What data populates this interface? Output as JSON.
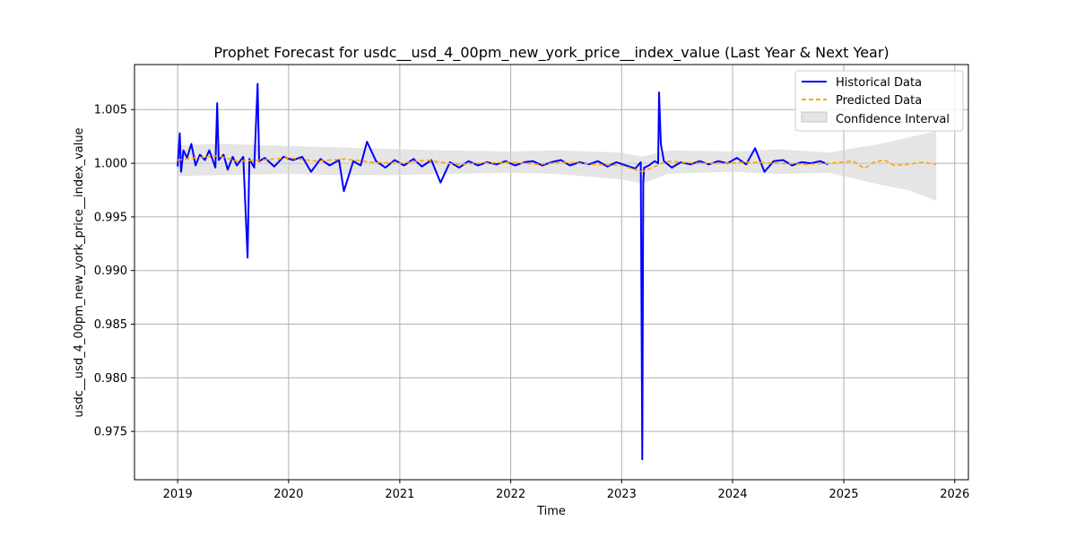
{
  "chart_data": {
    "type": "line",
    "title": "Prophet Forecast for usdc__usd_4_00pm_new_york_price__index_value (Last Year & Next Year)",
    "xlabel": "Time",
    "ylabel": "usdc__usd_4_00pm_new_york_price__index_value",
    "x_ticks": [
      "2019",
      "2020",
      "2021",
      "2022",
      "2023",
      "2024",
      "2025",
      "2026"
    ],
    "y_ticks": [
      "0.975",
      "0.980",
      "0.985",
      "0.990",
      "0.995",
      "1.000",
      "1.005"
    ],
    "x_range": [
      "2018-08-12",
      "2026-02-15"
    ],
    "ylim": [
      0.9705,
      1.0092
    ],
    "grid": true,
    "legend_position": "upper right",
    "colors": {
      "historical": "#0000ff",
      "predicted": "#ffa500",
      "confidence": "#d3d3d3"
    },
    "series": [
      {
        "name": "Historical Data",
        "style": "solid",
        "x": [
          "2019-01-01",
          "2019-01-08",
          "2019-01-12",
          "2019-01-20",
          "2019-02-01",
          "2019-02-15",
          "2019-03-01",
          "2019-03-15",
          "2019-04-01",
          "2019-04-15",
          "2019-05-05",
          "2019-05-11",
          "2019-05-16",
          "2019-06-01",
          "2019-06-15",
          "2019-07-01",
          "2019-07-15",
          "2019-08-05",
          "2019-08-19",
          "2019-08-25",
          "2019-09-10",
          "2019-09-21",
          "2019-09-26",
          "2019-10-15",
          "2019-11-15",
          "2019-12-15",
          "2020-01-15",
          "2020-02-15",
          "2020-03-15",
          "2020-04-15",
          "2020-05-15",
          "2020-06-15",
          "2020-07-01",
          "2020-08-01",
          "2020-08-25",
          "2020-09-15",
          "2020-10-15",
          "2020-11-15",
          "2020-12-15",
          "2021-01-15",
          "2021-02-15",
          "2021-03-15",
          "2021-04-15",
          "2021-05-15",
          "2021-06-15",
          "2021-07-15",
          "2021-08-15",
          "2021-09-15",
          "2021-10-15",
          "2021-11-15",
          "2021-12-15",
          "2022-01-15",
          "2022-02-15",
          "2022-03-15",
          "2022-04-15",
          "2022-05-15",
          "2022-06-15",
          "2022-07-15",
          "2022-08-15",
          "2022-09-15",
          "2022-10-15",
          "2022-11-15",
          "2022-12-15",
          "2023-01-15",
          "2023-02-15",
          "2023-03-05",
          "2023-03-10",
          "2023-03-13",
          "2023-03-16",
          "2023-04-01",
          "2023-04-20",
          "2023-05-01",
          "2023-05-04",
          "2023-05-10",
          "2023-05-20",
          "2023-06-15",
          "2023-07-15",
          "2023-08-15",
          "2023-09-15",
          "2023-10-15",
          "2023-11-15",
          "2023-12-15",
          "2024-01-15",
          "2024-02-15",
          "2024-03-15",
          "2024-04-15",
          "2024-05-15",
          "2024-06-15",
          "2024-07-15",
          "2024-08-15",
          "2024-09-15",
          "2024-10-15",
          "2024-11-10"
        ],
        "values": [
          0.9997,
          1.0028,
          0.9992,
          1.0012,
          1.0005,
          1.0018,
          0.9998,
          1.0008,
          1.0003,
          1.0012,
          0.9996,
          1.0056,
          1.0003,
          1.0008,
          0.9994,
          1.0006,
          0.9998,
          1.0006,
          0.9912,
          1.0004,
          0.9996,
          1.0074,
          1.0002,
          1.0005,
          0.9997,
          1.0006,
          1.0003,
          1.0006,
          0.9992,
          1.0004,
          0.9998,
          1.0003,
          0.9974,
          1.0002,
          0.9998,
          1.002,
          1.0002,
          0.9996,
          1.0003,
          0.9998,
          1.0004,
          0.9997,
          1.0003,
          0.9982,
          1.0001,
          0.9996,
          1.0002,
          0.9998,
          1.0001,
          0.9999,
          1.0002,
          0.9998,
          1.0001,
          1.0002,
          0.9998,
          1.0001,
          1.0003,
          0.9998,
          1.0001,
          0.9999,
          1.0002,
          0.9997,
          1.0001,
          0.9998,
          0.9995,
          1.0001,
          0.9724,
          0.9982,
          0.9996,
          0.9998,
          1.0002,
          1.0,
          1.0066,
          1.0018,
          1.0002,
          0.9996,
          1.0001,
          0.9999,
          1.0002,
          0.9999,
          1.0002,
          1.0,
          1.0005,
          0.9999,
          1.0014,
          0.9992,
          1.0002,
          1.0003,
          0.9998,
          1.0001,
          1.0,
          1.0002,
          0.9999
        ]
      },
      {
        "name": "Predicted Data",
        "style": "dashed",
        "x": [
          "2019-01-01",
          "2019-03-01",
          "2019-05-15",
          "2019-07-15",
          "2019-10-01",
          "2020-01-01",
          "2020-04-01",
          "2020-07-01",
          "2020-10-01",
          "2021-01-01",
          "2021-04-01",
          "2021-07-01",
          "2021-10-01",
          "2022-01-01",
          "2022-04-01",
          "2022-07-01",
          "2022-10-01",
          "2023-01-01",
          "2023-03-10",
          "2023-06-01",
          "2023-09-01",
          "2023-12-01",
          "2024-03-01",
          "2024-06-01",
          "2024-09-01",
          "2024-11-15",
          "2025-02-01",
          "2025-03-10",
          "2025-04-10",
          "2025-05-15",
          "2025-06-15",
          "2025-08-01",
          "2025-09-15",
          "2025-11-01"
        ],
        "values": [
          1.0003,
          1.0005,
          1.0007,
          1.0002,
          1.0003,
          1.0005,
          1.0002,
          1.0004,
          1.0001,
          1.0,
          1.0003,
          0.9999,
          1.0,
          1.0001,
          0.9999,
          1.0001,
          0.9999,
          0.9998,
          0.9992,
          1.0002,
          1.0,
          1.0,
          1.0001,
          1.0,
          0.9999,
          1.0,
          1.0002,
          0.9995,
          1.0001,
          1.0003,
          0.9998,
          0.9999,
          1.0001,
          0.9999
        ]
      }
    ],
    "confidence_interval": {
      "name": "Confidence Interval",
      "x": [
        "2019-01-01",
        "2019-06-01",
        "2020-01-01",
        "2020-06-01",
        "2021-01-01",
        "2021-06-01",
        "2022-01-01",
        "2022-06-01",
        "2023-01-01",
        "2023-03-10",
        "2023-06-01",
        "2024-01-01",
        "2024-06-01",
        "2024-11-15",
        "2025-02-01",
        "2025-05-01",
        "2025-08-01",
        "2025-11-01"
      ],
      "lower": [
        0.9988,
        0.9989,
        0.999,
        0.9989,
        0.9989,
        0.999,
        0.9991,
        0.999,
        0.9985,
        0.9981,
        0.999,
        0.9992,
        0.999,
        0.9991,
        0.9986,
        0.998,
        0.9975,
        0.9965
      ],
      "upper": [
        1.0017,
        1.0018,
        1.0016,
        1.0015,
        1.0013,
        1.0012,
        1.0011,
        1.0012,
        1.001,
        1.0006,
        1.0012,
        1.0011,
        1.0013,
        1.001,
        1.0014,
        1.0018,
        1.0024,
        1.003
      ]
    }
  }
}
